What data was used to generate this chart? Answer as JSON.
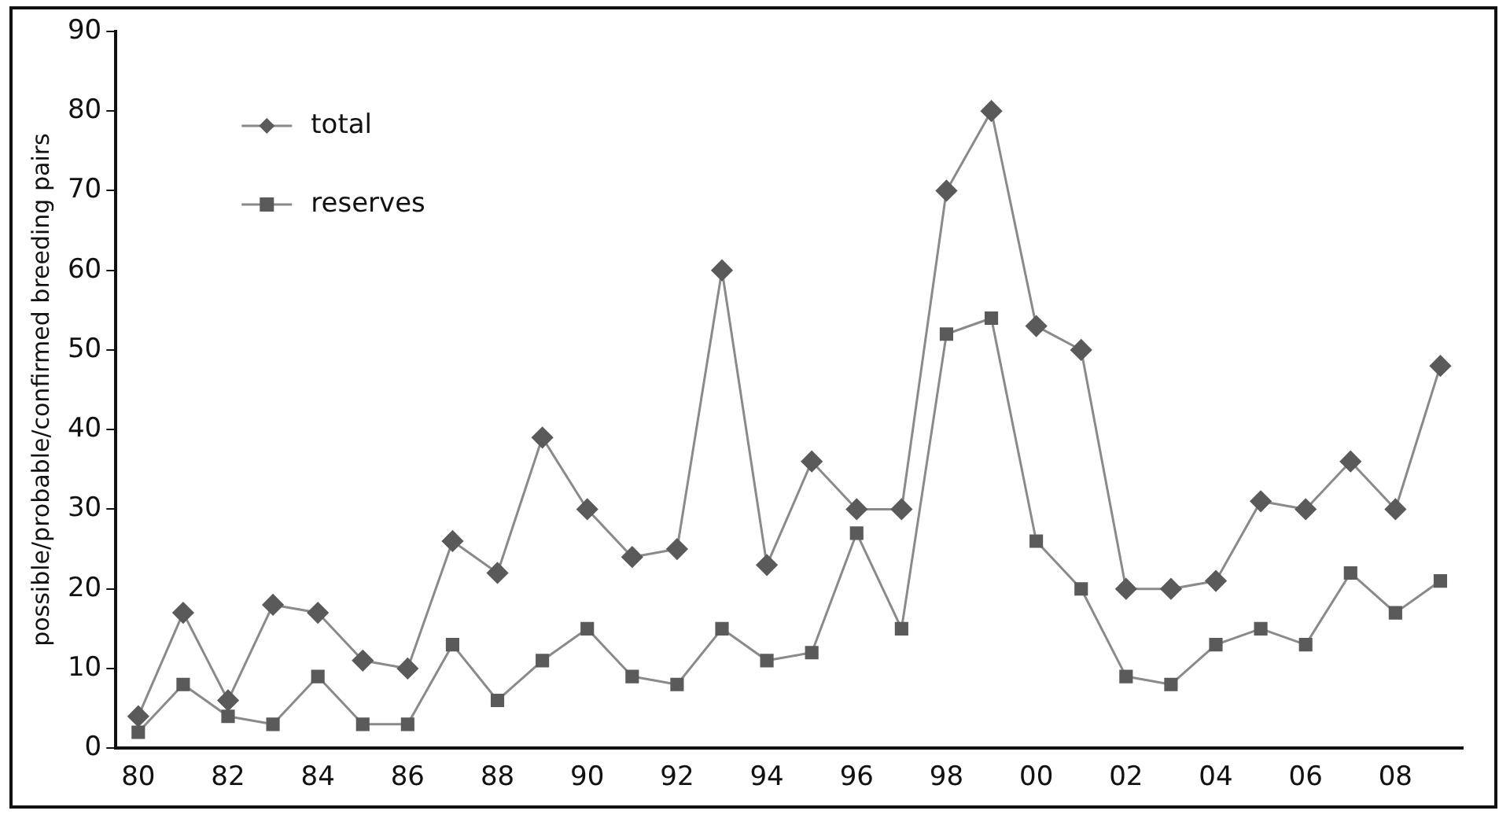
{
  "chart_data": {
    "type": "line",
    "ylabel": "possible/probable/confirmed breeding pairs",
    "categories": [
      "80",
      null,
      "82",
      null,
      "84",
      null,
      "86",
      null,
      "88",
      null,
      "90",
      null,
      "92",
      null,
      "94",
      null,
      "96",
      null,
      "98",
      null,
      "00",
      null,
      "02",
      null,
      "04",
      null,
      "06",
      null,
      "08",
      null
    ],
    "series": [
      {
        "name": "total",
        "color": "#5a5a5a",
        "marker": "diamond",
        "values": [
          4,
          17,
          6,
          18,
          17,
          11,
          10,
          26,
          22,
          39,
          30,
          24,
          25,
          60,
          23,
          36,
          30,
          30,
          70,
          80,
          53,
          50,
          20,
          20,
          21,
          31,
          30,
          36,
          30,
          48
        ]
      },
      {
        "name": "reserves",
        "color": "#5a5a5a",
        "marker": "square",
        "values": [
          2,
          8,
          4,
          3,
          9,
          3,
          3,
          13,
          6,
          11,
          15,
          9,
          8,
          15,
          11,
          12,
          27,
          15,
          52,
          54,
          26,
          20,
          9,
          8,
          13,
          15,
          13,
          22,
          17,
          21
        ]
      }
    ],
    "ylim": [
      0,
      90
    ],
    "yticks": [
      0,
      10,
      20,
      30,
      40,
      50,
      60,
      70,
      80,
      90
    ],
    "grid": false,
    "legend": "top left",
    "line_style": "solid"
  }
}
